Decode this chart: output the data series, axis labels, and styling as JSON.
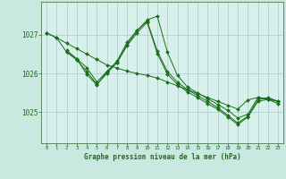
{
  "title": "Graphe pression niveau de la mer (hPa)",
  "bg_color": "#c8e8e0",
  "plot_bg_color": "#d8f0ec",
  "grid_color": "#a8c8c4",
  "line_color": "#1a6e1a",
  "xlim": [
    -0.5,
    23.5
  ],
  "ylim": [
    1024.2,
    1027.85
  ],
  "yticks": [
    1025,
    1026,
    1027
  ],
  "xticks": [
    0,
    1,
    2,
    3,
    4,
    5,
    6,
    7,
    8,
    9,
    10,
    11,
    12,
    13,
    14,
    15,
    16,
    17,
    18,
    19,
    20,
    21,
    22,
    23
  ],
  "series": [
    {
      "x": [
        0,
        1,
        2,
        3,
        4,
        5,
        6,
        7,
        8,
        9,
        10,
        11,
        12,
        13,
        14,
        15,
        16,
        17,
        18,
        19,
        20,
        21,
        22,
        23
      ],
      "y": [
        1027.05,
        1026.92,
        1026.78,
        1026.64,
        1026.5,
        1026.36,
        1026.22,
        1026.14,
        1026.06,
        1026.0,
        1025.95,
        1025.88,
        1025.78,
        1025.68,
        1025.58,
        1025.48,
        1025.38,
        1025.28,
        1025.18,
        1025.08,
        1025.32,
        1025.38,
        1025.33,
        1025.28
      ]
    },
    {
      "x": [
        0,
        1,
        2,
        3,
        4,
        5,
        6,
        7,
        8,
        9,
        10,
        11,
        12,
        13,
        14,
        15,
        16,
        17,
        18,
        19,
        20,
        21,
        22,
        23
      ],
      "y": [
        1027.05,
        1026.92,
        1026.55,
        1026.35,
        1026.05,
        1025.72,
        1026.0,
        1026.28,
        1026.75,
        1027.1,
        1027.38,
        1027.48,
        1026.55,
        1025.95,
        1025.65,
        1025.5,
        1025.35,
        1025.2,
        1025.05,
        1024.85,
        1024.95,
        1025.38,
        1025.35,
        1025.28
      ]
    },
    {
      "x": [
        2,
        3,
        4,
        5,
        6,
        7,
        8,
        9,
        10,
        11,
        12,
        13,
        14,
        15,
        16,
        17,
        18,
        19,
        20,
        21,
        22,
        23
      ],
      "y": [
        1026.6,
        1026.38,
        1026.15,
        1025.78,
        1026.05,
        1026.32,
        1026.8,
        1027.12,
        1027.35,
        1026.58,
        1026.05,
        1025.78,
        1025.58,
        1025.43,
        1025.28,
        1025.12,
        1024.92,
        1024.72,
        1024.9,
        1025.32,
        1025.38,
        1025.28
      ]
    },
    {
      "x": [
        2,
        3,
        4,
        5,
        6,
        7,
        8,
        9,
        10,
        11,
        12,
        13,
        14,
        15,
        16,
        17,
        18,
        19,
        20,
        21,
        22,
        23
      ],
      "y": [
        1026.55,
        1026.38,
        1025.98,
        1025.7,
        1026.05,
        1026.28,
        1026.72,
        1027.05,
        1027.32,
        1026.52,
        1025.98,
        1025.72,
        1025.52,
        1025.38,
        1025.22,
        1025.08,
        1024.88,
        1024.68,
        1024.88,
        1025.28,
        1025.33,
        1025.22
      ]
    }
  ]
}
